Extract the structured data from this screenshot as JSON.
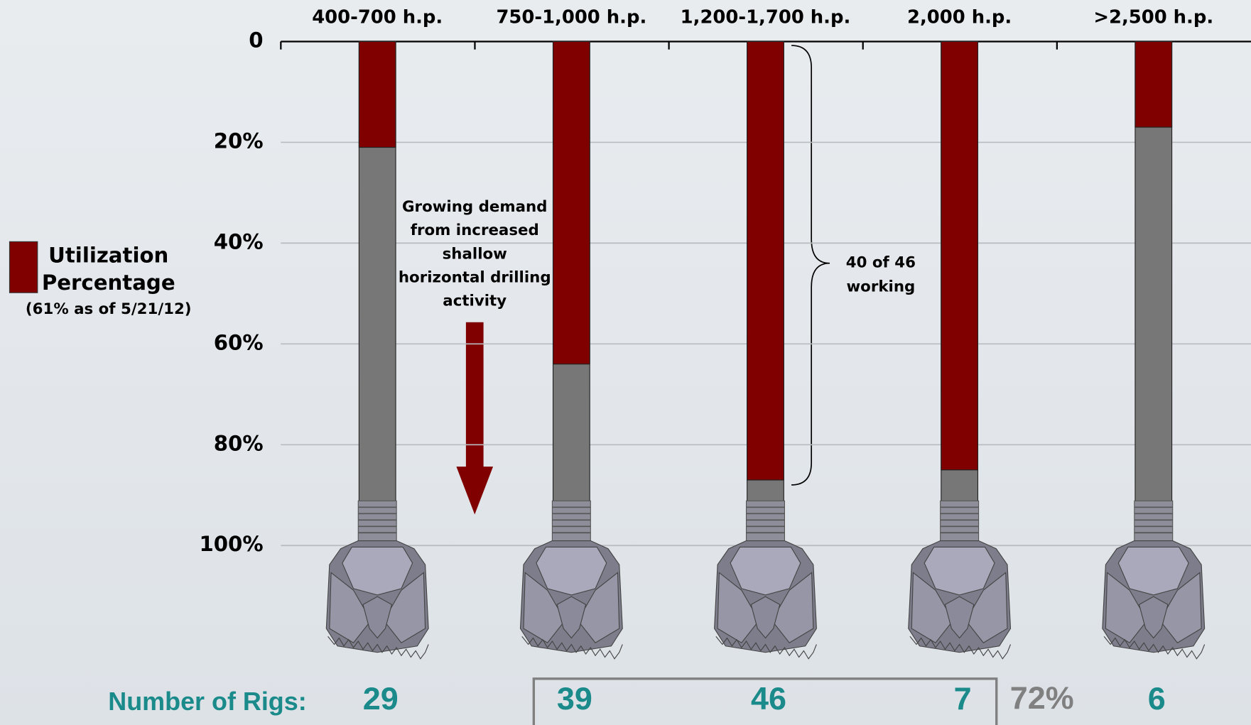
{
  "chart_data": {
    "type": "bar",
    "categories": [
      "400-700 h.p.",
      "750-1,000 h.p.",
      "1,200-1,700 h.p.",
      "2,000 h.p.",
      ">2,500 h.p."
    ],
    "values": [
      21,
      64,
      87,
      85,
      17
    ],
    "color": "#800000",
    "ylim": [
      0,
      100
    ],
    "yticks": [
      0,
      {
        "value": 20,
        "label": "20%"
      },
      {
        "value": 40,
        "label": "40%"
      },
      {
        "value": 60,
        "label": "60%"
      },
      {
        "value": 80,
        "label": "80%"
      },
      {
        "value": 100,
        "label": "100%"
      }
    ],
    "inverted_y": true,
    "grid": true,
    "legend": {
      "name_lines": [
        "Utilization",
        "Percentage"
      ],
      "note": "(61% as of 5/21/12)"
    },
    "annotation_lines": [
      "Growing demand",
      "from increased",
      "shallow",
      "horizontal drilling",
      "activity"
    ],
    "brace_label_lines": [
      "40 of 46",
      "working"
    ],
    "rig_counts_label": "Number of Rigs:",
    "rig_counts": [
      29,
      39,
      46,
      7,
      6
    ],
    "group_share": {
      "value": 72,
      "label": "72%"
    }
  }
}
